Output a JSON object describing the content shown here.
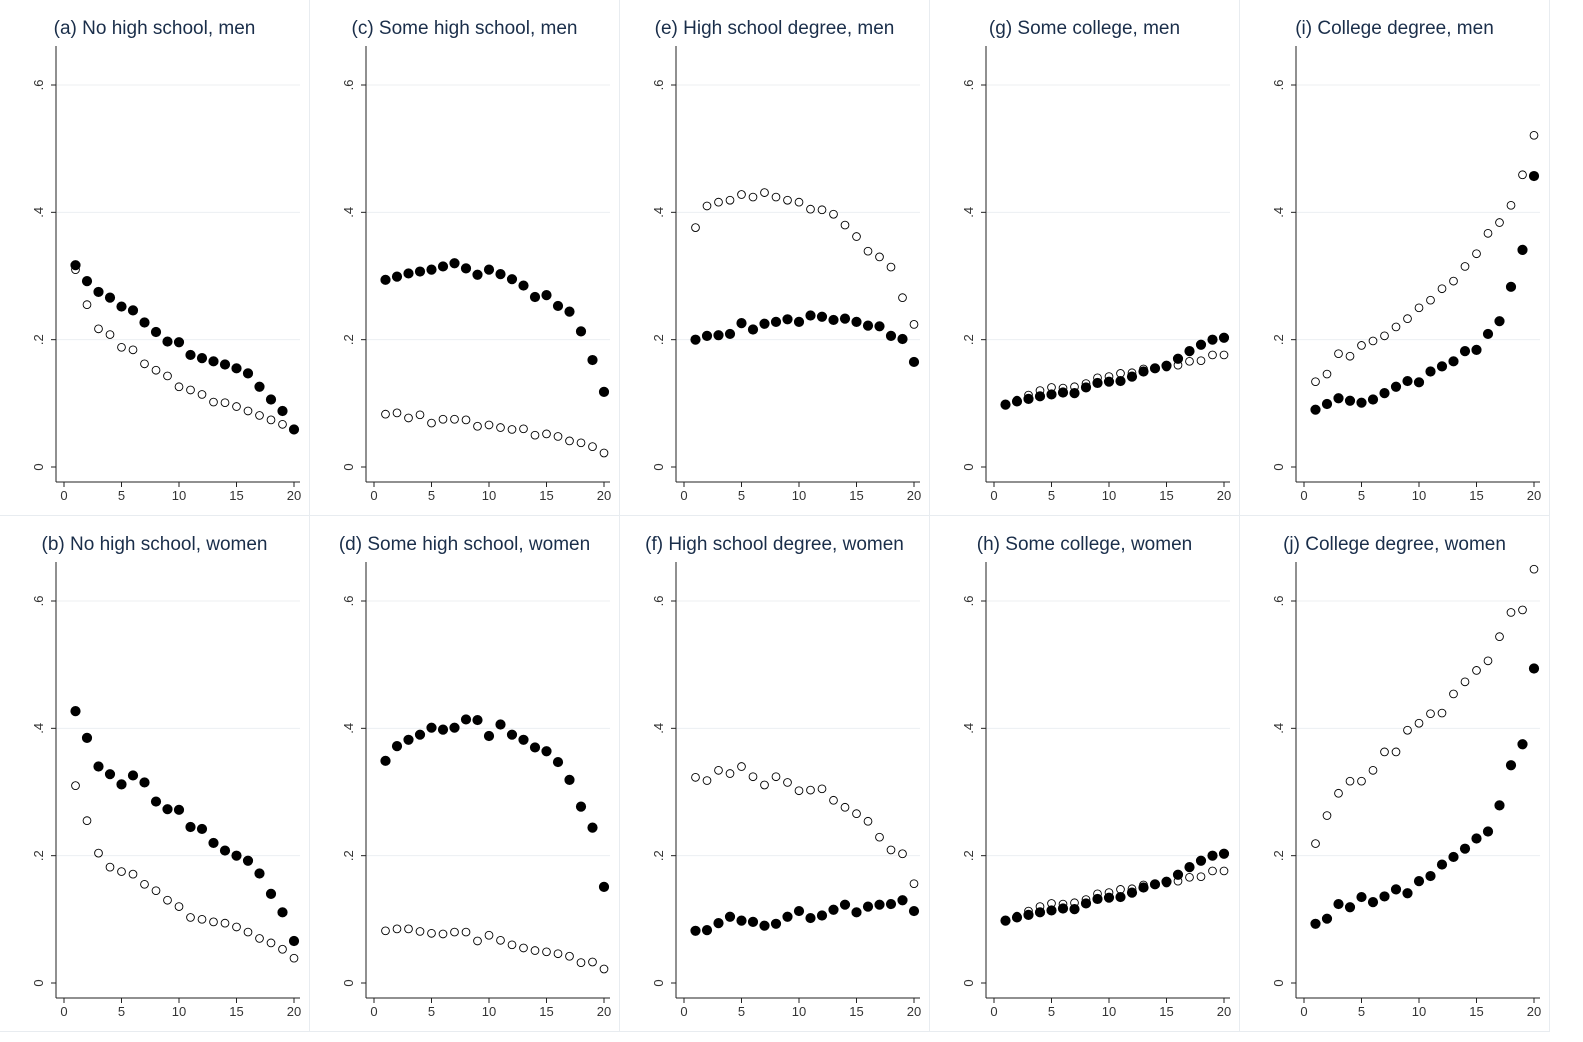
{
  "chart_data": [
    {
      "type": "scatter",
      "title": "(a) No high school, men",
      "xticks": [
        "0",
        "5",
        "10",
        "15",
        "20"
      ],
      "yticks": [
        "0",
        ".2",
        ".4",
        ".6"
      ],
      "xlim": [
        0,
        20
      ],
      "ylim": [
        0,
        0.6
      ],
      "series": [
        {
          "marker": "filled",
          "x": [
            1,
            2,
            3,
            4,
            5,
            6,
            7,
            8,
            9,
            10,
            11,
            12,
            13,
            14,
            15,
            16,
            17,
            18,
            19,
            20
          ],
          "y": [
            0.317,
            0.292,
            0.275,
            0.266,
            0.252,
            0.246,
            0.227,
            0.212,
            0.197,
            0.196,
            0.176,
            0.171,
            0.166,
            0.161,
            0.155,
            0.147,
            0.126,
            0.106,
            0.088,
            0.059
          ]
        },
        {
          "marker": "hollow",
          "x": [
            1,
            2,
            3,
            4,
            5,
            6,
            7,
            8,
            9,
            10,
            11,
            12,
            13,
            14,
            15,
            16,
            17,
            18,
            19,
            20
          ],
          "y": [
            0.31,
            0.255,
            0.217,
            0.208,
            0.188,
            0.184,
            0.162,
            0.152,
            0.143,
            0.126,
            0.121,
            0.114,
            0.102,
            0.101,
            0.095,
            0.088,
            0.081,
            0.074,
            0.067,
            0.058
          ]
        }
      ]
    },
    {
      "type": "scatter",
      "title": "(b) No high school, women",
      "xticks": [
        "0",
        "5",
        "10",
        "15",
        "20"
      ],
      "yticks": [
        "0",
        ".2",
        ".4",
        ".6"
      ],
      "xlim": [
        0,
        20
      ],
      "ylim": [
        0,
        0.6
      ],
      "series": [
        {
          "marker": "filled",
          "x": [
            1,
            2,
            3,
            4,
            5,
            6,
            7,
            8,
            9,
            10,
            11,
            12,
            13,
            14,
            15,
            16,
            17,
            18,
            19,
            20
          ],
          "y": [
            0.427,
            0.385,
            0.34,
            0.328,
            0.312,
            0.326,
            0.315,
            0.285,
            0.273,
            0.272,
            0.245,
            0.242,
            0.22,
            0.208,
            0.2,
            0.192,
            0.172,
            0.14,
            0.111,
            0.066
          ]
        },
        {
          "marker": "hollow",
          "x": [
            1,
            2,
            3,
            4,
            5,
            6,
            7,
            8,
            9,
            10,
            11,
            12,
            13,
            14,
            15,
            16,
            17,
            18,
            19,
            20
          ],
          "y": [
            0.31,
            0.255,
            0.204,
            0.182,
            0.175,
            0.171,
            0.155,
            0.145,
            0.13,
            0.12,
            0.103,
            0.1,
            0.096,
            0.094,
            0.088,
            0.08,
            0.07,
            0.063,
            0.053,
            0.039
          ]
        }
      ]
    },
    {
      "type": "scatter",
      "title": "(c) Some high school, men",
      "xticks": [
        "0",
        "5",
        "10",
        "15",
        "20"
      ],
      "yticks": [
        "0",
        ".2",
        ".4",
        ".6"
      ],
      "xlim": [
        0,
        20
      ],
      "ylim": [
        0,
        0.6
      ],
      "series": [
        {
          "marker": "filled",
          "x": [
            1,
            2,
            3,
            4,
            5,
            6,
            7,
            8,
            9,
            10,
            11,
            12,
            13,
            14,
            15,
            16,
            17,
            18,
            19,
            20
          ],
          "y": [
            0.294,
            0.299,
            0.304,
            0.307,
            0.31,
            0.315,
            0.32,
            0.312,
            0.302,
            0.31,
            0.303,
            0.295,
            0.285,
            0.267,
            0.27,
            0.253,
            0.244,
            0.213,
            0.168,
            0.118
          ]
        },
        {
          "marker": "hollow",
          "x": [
            1,
            2,
            3,
            4,
            5,
            6,
            7,
            8,
            9,
            10,
            11,
            12,
            13,
            14,
            15,
            16,
            17,
            18,
            19,
            20
          ],
          "y": [
            0.083,
            0.085,
            0.077,
            0.082,
            0.069,
            0.075,
            0.075,
            0.074,
            0.064,
            0.066,
            0.062,
            0.059,
            0.06,
            0.05,
            0.052,
            0.048,
            0.041,
            0.038,
            0.032,
            0.022
          ]
        }
      ]
    },
    {
      "type": "scatter",
      "title": "(d) Some high school, women",
      "xticks": [
        "0",
        "5",
        "10",
        "15",
        "20"
      ],
      "yticks": [
        "0",
        ".2",
        ".4",
        ".6"
      ],
      "xlim": [
        0,
        20
      ],
      "ylim": [
        0,
        0.6
      ],
      "series": [
        {
          "marker": "filled",
          "x": [
            1,
            2,
            3,
            4,
            5,
            6,
            7,
            8,
            9,
            10,
            11,
            12,
            13,
            14,
            15,
            16,
            17,
            18,
            19,
            20
          ],
          "y": [
            0.349,
            0.372,
            0.382,
            0.39,
            0.401,
            0.398,
            0.401,
            0.414,
            0.413,
            0.388,
            0.406,
            0.39,
            0.382,
            0.37,
            0.364,
            0.347,
            0.319,
            0.277,
            0.244,
            0.151
          ]
        },
        {
          "marker": "hollow",
          "x": [
            1,
            2,
            3,
            4,
            5,
            6,
            7,
            8,
            9,
            10,
            11,
            12,
            13,
            14,
            15,
            16,
            17,
            18,
            19,
            20
          ],
          "y": [
            0.082,
            0.085,
            0.085,
            0.081,
            0.078,
            0.077,
            0.08,
            0.08,
            0.066,
            0.075,
            0.067,
            0.06,
            0.055,
            0.051,
            0.049,
            0.046,
            0.042,
            0.032,
            0.033,
            0.022
          ]
        }
      ]
    },
    {
      "type": "scatter",
      "title": "(e) High school degree, men",
      "xticks": [
        "0",
        "5",
        "10",
        "15",
        "20"
      ],
      "yticks": [
        "0",
        ".2",
        ".4",
        ".6"
      ],
      "xlim": [
        0,
        20
      ],
      "ylim": [
        0,
        0.6
      ],
      "series": [
        {
          "marker": "filled",
          "x": [
            1,
            2,
            3,
            4,
            5,
            6,
            7,
            8,
            9,
            10,
            11,
            12,
            13,
            14,
            15,
            16,
            17,
            18,
            19,
            20
          ],
          "y": [
            0.2,
            0.206,
            0.207,
            0.209,
            0.226,
            0.216,
            0.225,
            0.228,
            0.232,
            0.228,
            0.238,
            0.236,
            0.231,
            0.233,
            0.228,
            0.222,
            0.221,
            0.206,
            0.201,
            0.165
          ]
        },
        {
          "marker": "hollow",
          "x": [
            1,
            2,
            3,
            4,
            5,
            6,
            7,
            8,
            9,
            10,
            11,
            12,
            13,
            14,
            15,
            16,
            17,
            18,
            19,
            20
          ],
          "y": [
            0.376,
            0.41,
            0.416,
            0.419,
            0.428,
            0.424,
            0.431,
            0.424,
            0.419,
            0.416,
            0.405,
            0.404,
            0.397,
            0.38,
            0.362,
            0.339,
            0.33,
            0.314,
            0.266,
            0.224
          ]
        }
      ]
    },
    {
      "type": "scatter",
      "title": "(f) High school degree, women",
      "xticks": [
        "0",
        "5",
        "10",
        "15",
        "20"
      ],
      "yticks": [
        "0",
        ".2",
        ".4",
        ".6"
      ],
      "xlim": [
        0,
        20
      ],
      "ylim": [
        0,
        0.6
      ],
      "series": [
        {
          "marker": "filled",
          "x": [
            1,
            2,
            3,
            4,
            5,
            6,
            7,
            8,
            9,
            10,
            11,
            12,
            13,
            14,
            15,
            16,
            17,
            18,
            19,
            20
          ],
          "y": [
            0.082,
            0.083,
            0.094,
            0.104,
            0.098,
            0.096,
            0.09,
            0.093,
            0.104,
            0.113,
            0.102,
            0.106,
            0.115,
            0.123,
            0.111,
            0.12,
            0.123,
            0.124,
            0.13,
            0.113
          ]
        },
        {
          "marker": "hollow",
          "x": [
            1,
            2,
            3,
            4,
            5,
            6,
            7,
            8,
            9,
            10,
            11,
            12,
            13,
            14,
            15,
            16,
            17,
            18,
            19,
            20
          ],
          "y": [
            0.323,
            0.318,
            0.334,
            0.329,
            0.34,
            0.324,
            0.311,
            0.324,
            0.315,
            0.302,
            0.303,
            0.305,
            0.287,
            0.276,
            0.266,
            0.254,
            0.229,
            0.209,
            0.203,
            0.156
          ]
        }
      ]
    },
    {
      "type": "scatter",
      "title": "(g) Some college, men",
      "xticks": [
        "0",
        "5",
        "10",
        "15",
        "20"
      ],
      "yticks": [
        "0",
        ".2",
        ".4",
        ".6"
      ],
      "xlim": [
        0,
        20
      ],
      "ylim": [
        0,
        0.6
      ],
      "series": [
        {
          "marker": "filled",
          "x": [
            1,
            2,
            3,
            4,
            5,
            6,
            7,
            8,
            9,
            10,
            11,
            12,
            13,
            14,
            15,
            16,
            17,
            18,
            19,
            20
          ],
          "y": [
            0.098,
            0.103,
            0.107,
            0.111,
            0.114,
            0.117,
            0.116,
            0.125,
            0.132,
            0.134,
            0.135,
            0.142,
            0.15,
            0.155,
            0.159,
            0.17,
            0.182,
            0.192,
            0.2,
            0.203
          ]
        },
        {
          "marker": "hollow",
          "x": [
            1,
            2,
            3,
            4,
            5,
            6,
            7,
            8,
            9,
            10,
            11,
            12,
            13,
            14,
            15,
            16,
            17,
            18,
            19,
            20
          ],
          "y": [
            0.098,
            0.105,
            0.113,
            0.12,
            0.125,
            0.124,
            0.126,
            0.131,
            0.14,
            0.142,
            0.147,
            0.148,
            0.154,
            0.155,
            0.157,
            0.16,
            0.166,
            0.167,
            0.176,
            0.176
          ]
        }
      ]
    },
    {
      "type": "scatter",
      "title": "(h) Some college, women",
      "xticks": [
        "0",
        "5",
        "10",
        "15",
        "20"
      ],
      "yticks": [
        "0",
        ".2",
        ".4",
        ".6"
      ],
      "xlim": [
        0,
        20
      ],
      "ylim": [
        0,
        0.6
      ],
      "series": [
        {
          "marker": "filled",
          "x": [
            1,
            2,
            3,
            4,
            5,
            6,
            7,
            8,
            9,
            10,
            11,
            12,
            13,
            14,
            15,
            16,
            17,
            18,
            19,
            20
          ],
          "y": [
            0.098,
            0.103,
            0.107,
            0.111,
            0.114,
            0.117,
            0.116,
            0.125,
            0.132,
            0.134,
            0.135,
            0.142,
            0.15,
            0.155,
            0.159,
            0.17,
            0.182,
            0.192,
            0.2,
            0.203
          ]
        },
        {
          "marker": "hollow",
          "x": [
            1,
            2,
            3,
            4,
            5,
            6,
            7,
            8,
            9,
            10,
            11,
            12,
            13,
            14,
            15,
            16,
            17,
            18,
            19,
            20
          ],
          "y": [
            0.098,
            0.105,
            0.113,
            0.12,
            0.125,
            0.124,
            0.126,
            0.131,
            0.14,
            0.142,
            0.147,
            0.148,
            0.154,
            0.155,
            0.157,
            0.16,
            0.166,
            0.167,
            0.176,
            0.176
          ]
        }
      ]
    },
    {
      "type": "scatter",
      "title": "(i) College degree, men",
      "xticks": [
        "0",
        "5",
        "10",
        "15",
        "20"
      ],
      "yticks": [
        "0",
        ".2",
        ".4",
        ".6"
      ],
      "xlim": [
        0,
        20
      ],
      "ylim": [
        0,
        0.6
      ],
      "series": [
        {
          "marker": "filled",
          "x": [
            1,
            2,
            3,
            4,
            5,
            6,
            7,
            8,
            9,
            10,
            11,
            12,
            13,
            14,
            15,
            16,
            17,
            18,
            19,
            20
          ],
          "y": [
            0.09,
            0.099,
            0.108,
            0.104,
            0.101,
            0.106,
            0.116,
            0.126,
            0.135,
            0.133,
            0.15,
            0.158,
            0.166,
            0.182,
            0.184,
            0.209,
            0.229,
            0.283,
            0.341,
            0.457
          ]
        },
        {
          "marker": "hollow",
          "x": [
            1,
            2,
            3,
            4,
            5,
            6,
            7,
            8,
            9,
            10,
            11,
            12,
            13,
            14,
            15,
            16,
            17,
            18,
            19,
            20
          ],
          "y": [
            0.134,
            0.146,
            0.178,
            0.174,
            0.191,
            0.198,
            0.206,
            0.22,
            0.233,
            0.25,
            0.262,
            0.28,
            0.292,
            0.315,
            0.335,
            0.367,
            0.384,
            0.411,
            0.459,
            0.521
          ]
        }
      ]
    },
    {
      "type": "scatter",
      "title": "(j) College degree, women",
      "xticks": [
        "0",
        "5",
        "10",
        "15",
        "20"
      ],
      "yticks": [
        "0",
        ".2",
        ".4",
        ".6"
      ],
      "xlim": [
        0,
        20
      ],
      "ylim": [
        0,
        0.6
      ],
      "series": [
        {
          "marker": "filled",
          "x": [
            1,
            2,
            3,
            4,
            5,
            6,
            7,
            8,
            9,
            10,
            11,
            12,
            13,
            14,
            15,
            16,
            17,
            18,
            19,
            20
          ],
          "y": [
            0.093,
            0.101,
            0.124,
            0.119,
            0.135,
            0.127,
            0.136,
            0.147,
            0.141,
            0.16,
            0.168,
            0.186,
            0.198,
            0.211,
            0.227,
            0.238,
            0.279,
            0.342,
            0.375,
            0.494
          ]
        },
        {
          "marker": "hollow",
          "x": [
            1,
            2,
            3,
            4,
            5,
            6,
            7,
            8,
            9,
            10,
            11,
            12,
            13,
            14,
            15,
            16,
            17,
            18,
            19,
            20
          ],
          "y": [
            0.219,
            0.263,
            0.298,
            0.317,
            0.317,
            0.334,
            0.363,
            0.363,
            0.397,
            0.408,
            0.423,
            0.424,
            0.454,
            0.473,
            0.491,
            0.506,
            0.544,
            0.582,
            0.586,
            0.65
          ]
        }
      ]
    }
  ]
}
